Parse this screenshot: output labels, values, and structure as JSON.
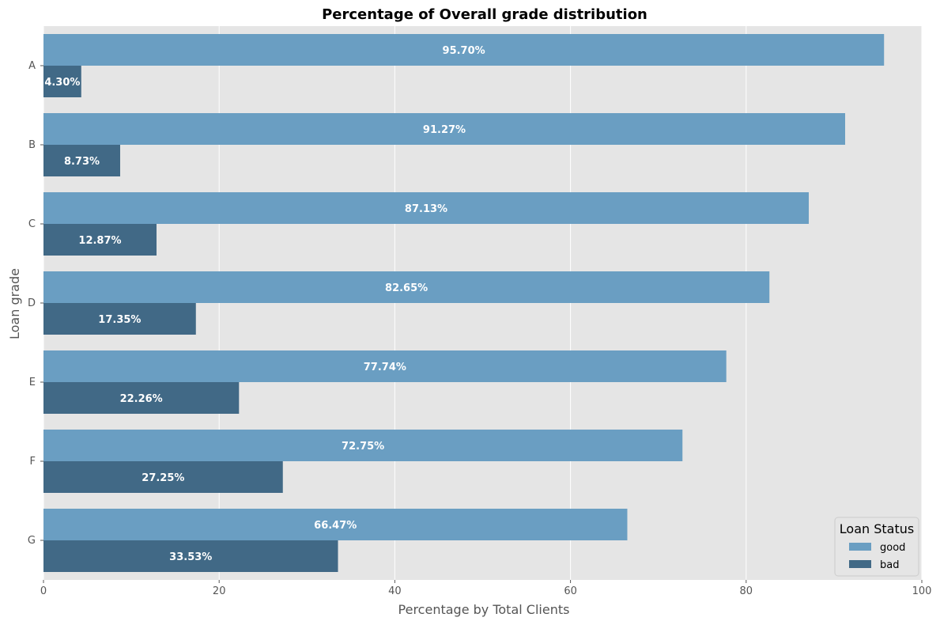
{
  "chart_data": {
    "type": "bar",
    "orientation": "horizontal",
    "title": "Percentage of Overall grade distribution",
    "xlabel": "Percentage by Total Clients",
    "ylabel": "Loan grade",
    "xlim": [
      0,
      100
    ],
    "xticks": [
      "0",
      "20",
      "40",
      "60",
      "80",
      "100"
    ],
    "categories": [
      "A",
      "B",
      "C",
      "D",
      "E",
      "F",
      "G"
    ],
    "series": [
      {
        "name": "good",
        "color": "#6a9ec2",
        "values": [
          95.7,
          91.27,
          87.13,
          82.65,
          77.74,
          72.75,
          66.47
        ],
        "labels": [
          "95.70%",
          "91.27%",
          "87.13%",
          "82.65%",
          "77.74%",
          "72.75%",
          "66.47%"
        ]
      },
      {
        "name": "bad",
        "color": "#416986",
        "values": [
          4.3,
          8.73,
          12.87,
          17.35,
          22.26,
          27.25,
          33.53
        ],
        "labels": [
          "4.30%",
          "8.73%",
          "12.87%",
          "17.35%",
          "22.26%",
          "27.25%",
          "33.53%"
        ]
      }
    ],
    "legend": {
      "title": "Loan Status",
      "placement": "lower-right"
    },
    "grid": true,
    "background": "#e5e5e5"
  }
}
